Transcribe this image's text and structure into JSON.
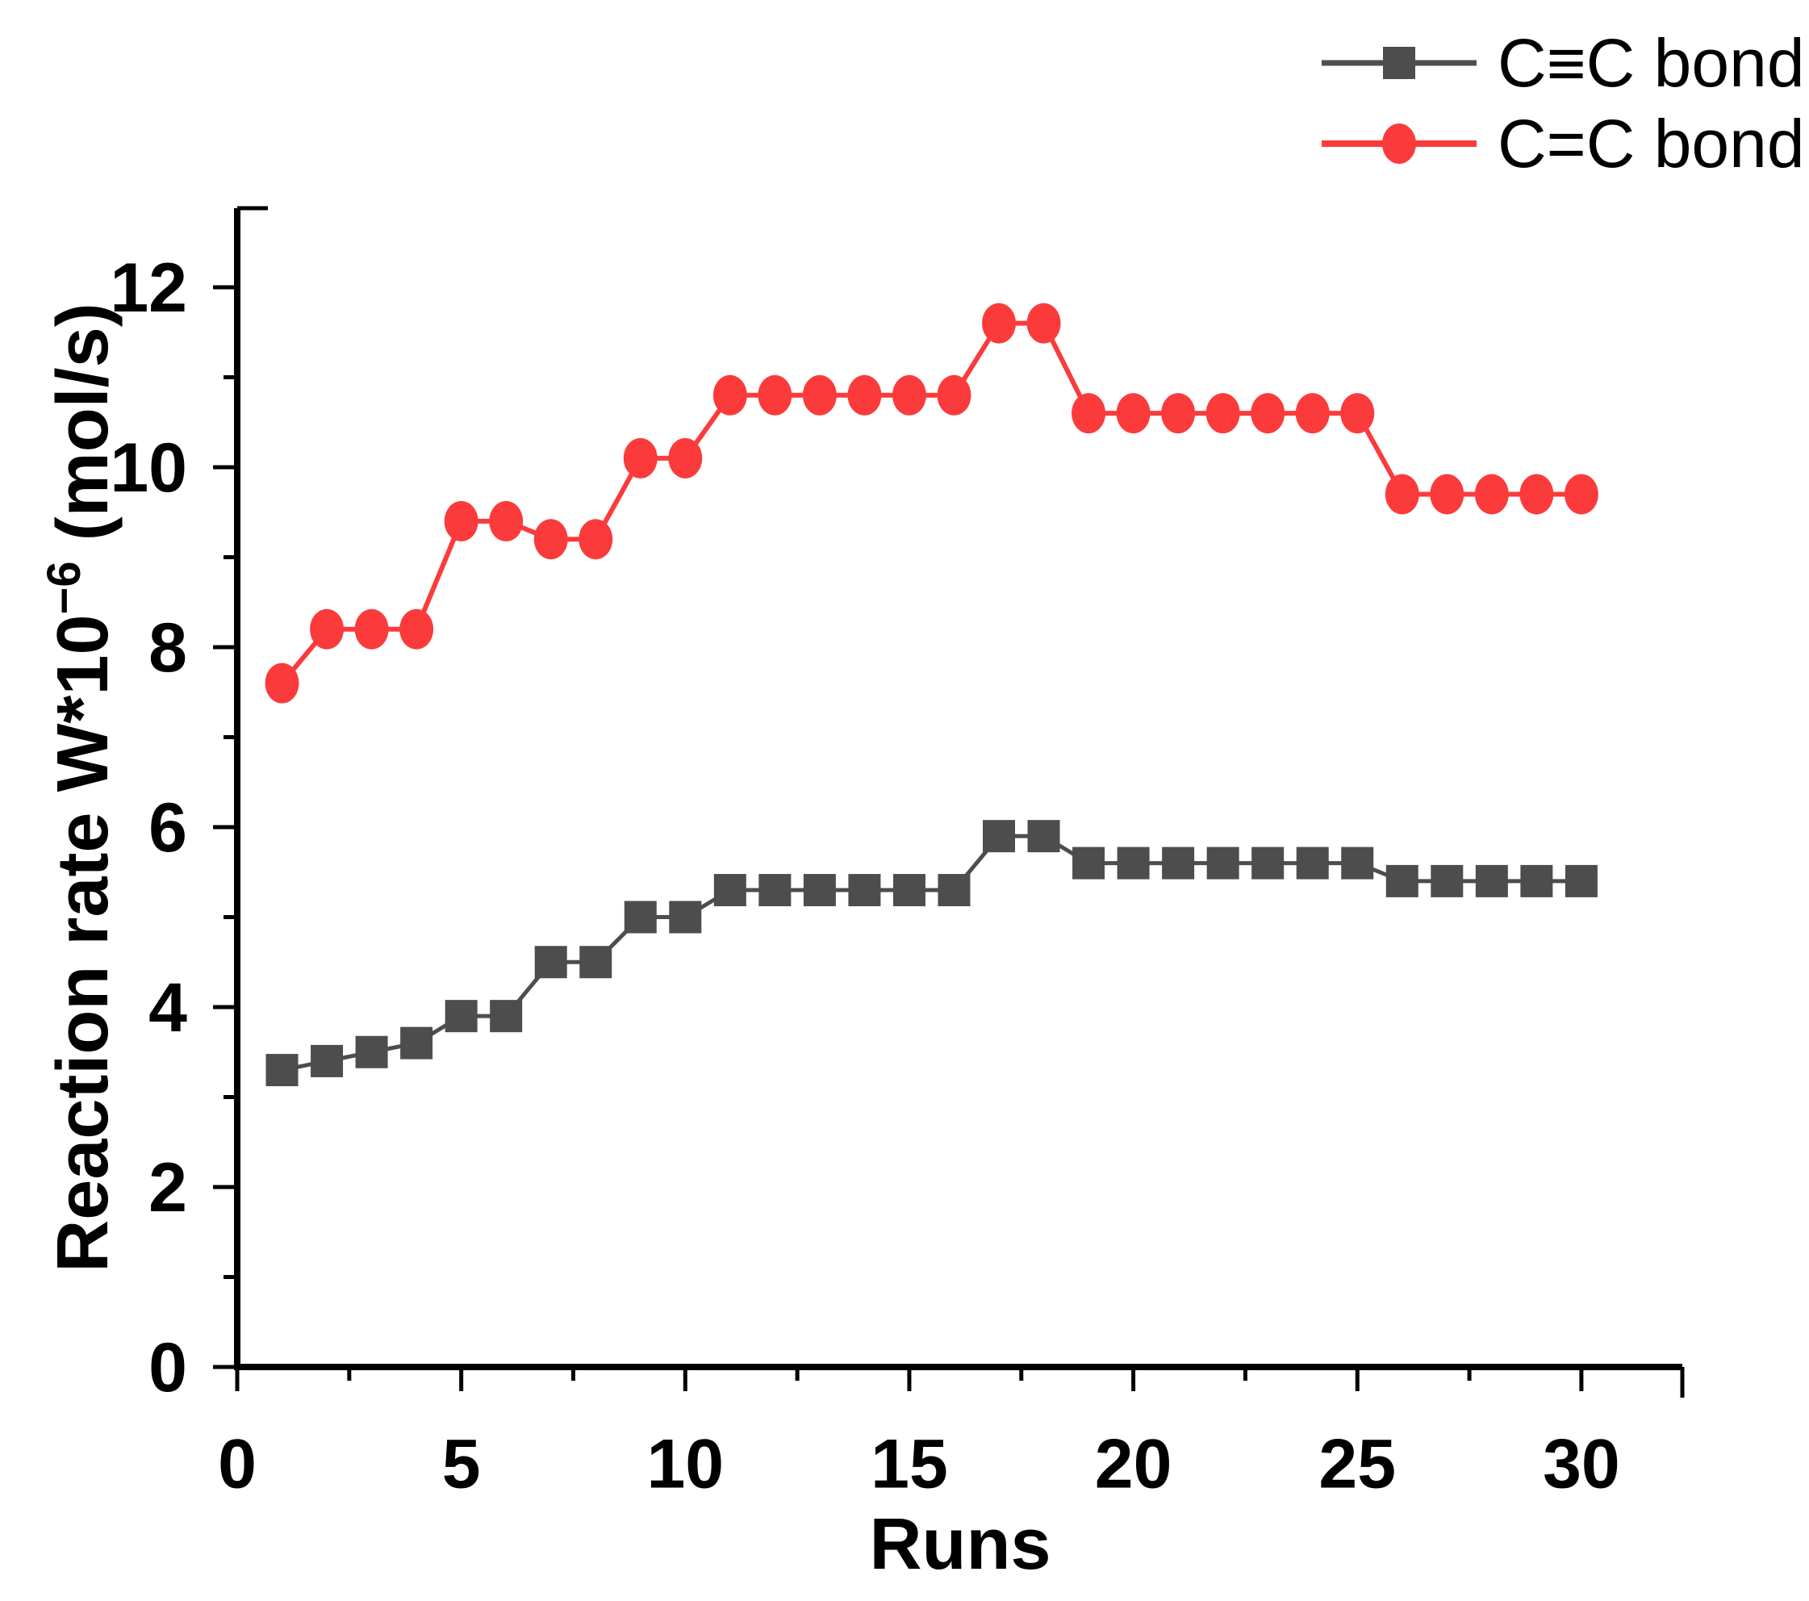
{
  "figure": {
    "background": "#ffffff",
    "text_color": "#000000"
  },
  "chart_data": {
    "type": "line",
    "title": "",
    "xlabel": "Runs",
    "ylabel": "Reaction rate W*10⁻⁶ (mol/s)",
    "ylabel_parts": {
      "base": "Reaction rate W*10",
      "exp": "−6",
      "unit": " (mol/s)"
    },
    "x": [
      1,
      2,
      3,
      4,
      5,
      6,
      7,
      8,
      9,
      10,
      11,
      12,
      13,
      14,
      15,
      16,
      17,
      18,
      19,
      20,
      21,
      22,
      23,
      24,
      25,
      26,
      27,
      28,
      29,
      30
    ],
    "series": [
      {
        "name": "C≡C bond",
        "marker": "square",
        "color": "#4d4d4d",
        "line_color": "#4d4d4d",
        "values": [
          3.3,
          3.4,
          3.5,
          3.6,
          3.9,
          3.9,
          4.5,
          4.5,
          5.0,
          5.0,
          5.3,
          5.3,
          5.3,
          5.3,
          5.3,
          5.3,
          5.9,
          5.9,
          5.6,
          5.6,
          5.6,
          5.6,
          5.6,
          5.6,
          5.6,
          5.4,
          5.4,
          5.4,
          5.4,
          5.4
        ]
      },
      {
        "name": "C=C bond",
        "marker": "circle",
        "color": "#fb3b3b",
        "line_color": "#fb3b3b",
        "values": [
          7.6,
          8.2,
          8.2,
          8.2,
          9.4,
          9.4,
          9.2,
          9.2,
          10.1,
          10.1,
          10.8,
          10.8,
          10.8,
          10.8,
          10.8,
          10.8,
          11.6,
          11.6,
          10.6,
          10.6,
          10.6,
          10.6,
          10.6,
          10.6,
          10.6,
          9.7,
          9.7,
          9.7,
          9.7,
          9.7
        ]
      }
    ],
    "xlim": [
      0,
      32.3
    ],
    "ylim": [
      0,
      12.9
    ],
    "x_major_ticks": [
      0,
      5,
      10,
      15,
      20,
      25,
      30
    ],
    "x_minor_ticks": [
      2.5,
      7.5,
      12.5,
      17.5,
      22.5,
      27.5
    ],
    "y_major_ticks": [
      0,
      2,
      4,
      6,
      8,
      10,
      12
    ],
    "y_minor_ticks": [
      1,
      3,
      5,
      7,
      9,
      11
    ],
    "grid": false,
    "legend_position": "top-right"
  },
  "axes": {
    "x_tick_labels": [
      "0",
      "5",
      "10",
      "15",
      "20",
      "25",
      "30"
    ],
    "y_tick_labels": [
      "0",
      "2",
      "4",
      "6",
      "8",
      "10",
      "12"
    ]
  }
}
